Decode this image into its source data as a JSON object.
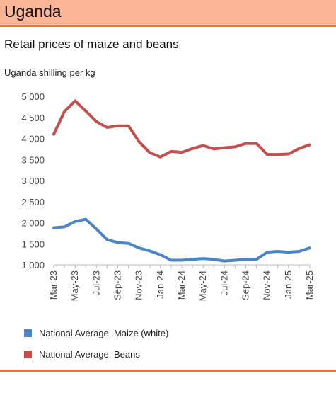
{
  "header": {
    "title": "Uganda"
  },
  "chart_data": {
    "type": "line",
    "title": "Retail prices of maize and beans",
    "ylabel": "Uganda shilling per kg",
    "xlabel": "",
    "ylim": [
      1000,
      5000
    ],
    "yticks": [
      "5 000",
      "4 500",
      "4 000",
      "3 500",
      "3 000",
      "2 500",
      "2 000",
      "1 500",
      "1 000"
    ],
    "ytick_values": [
      5000,
      4500,
      4000,
      3500,
      3000,
      2500,
      2000,
      1500,
      1000
    ],
    "x": [
      "Mar-23",
      "Apr-23",
      "May-23",
      "Jun-23",
      "Jul-23",
      "Aug-23",
      "Sep-23",
      "Oct-23",
      "Nov-23",
      "Dec-23",
      "Jan-24",
      "Feb-24",
      "Mar-24",
      "Apr-24",
      "May-24",
      "Jun-24",
      "Jul-24",
      "Aug-24",
      "Sep-24",
      "Oct-24",
      "Nov-24",
      "Dec-24",
      "Jan-25",
      "Feb-25",
      "Mar-25"
    ],
    "xtick_labels": [
      "Mar-23",
      "May-23",
      "Jul-23",
      "Sep-23",
      "Nov-23",
      "Jan-24",
      "Mar-24",
      "May-24",
      "Jul-24",
      "Sep-24",
      "Nov-24",
      "Jan-25",
      "Mar-25"
    ],
    "grid": false,
    "legend_position": "bottom",
    "series": [
      {
        "name": "National Average, Maize (white)",
        "color": "#4a86c5",
        "values": [
          1880,
          1900,
          2030,
          2080,
          1850,
          1600,
          1530,
          1510,
          1400,
          1330,
          1240,
          1110,
          1110,
          1130,
          1150,
          1130,
          1090,
          1110,
          1130,
          1130,
          1300,
          1320,
          1300,
          1320,
          1400
        ]
      },
      {
        "name": "National Average, Beans",
        "color": "#c0504d",
        "values": [
          4100,
          4640,
          4890,
          4650,
          4400,
          4260,
          4300,
          4300,
          3920,
          3660,
          3560,
          3690,
          3670,
          3760,
          3830,
          3750,
          3780,
          3800,
          3880,
          3880,
          3620,
          3620,
          3630,
          3760,
          3850
        ]
      }
    ]
  }
}
